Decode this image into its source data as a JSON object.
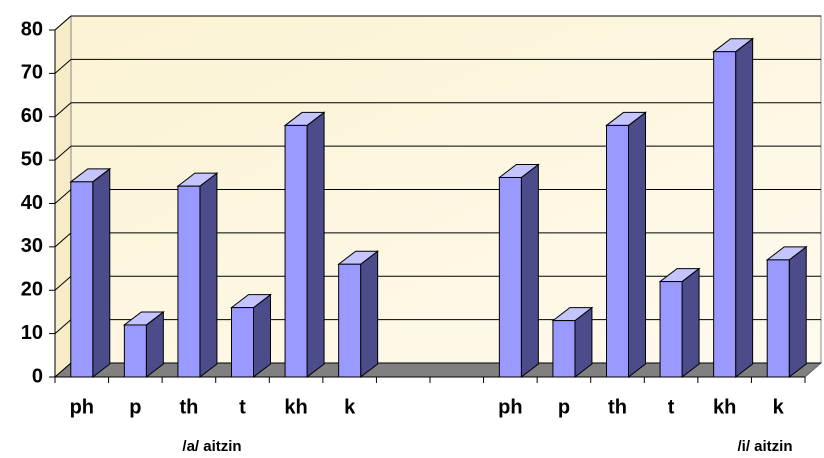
{
  "chart_data": {
    "type": "bar",
    "categories": [
      "ph",
      "p",
      "th",
      "t",
      "kh",
      "k",
      null,
      null,
      "ph",
      "p",
      "th",
      "t",
      "kh",
      "k"
    ],
    "values": [
      45,
      12,
      44,
      16,
      58,
      26,
      null,
      null,
      46,
      13,
      58,
      22,
      75,
      27
    ],
    "color": "#9999ff",
    "ylim": [
      0,
      80
    ],
    "yticks": [
      0,
      10,
      20,
      30,
      40,
      50,
      60,
      70,
      80
    ],
    "grid": true,
    "annotations": [
      "/a/ aitzin",
      "/i/ aitzin"
    ]
  }
}
